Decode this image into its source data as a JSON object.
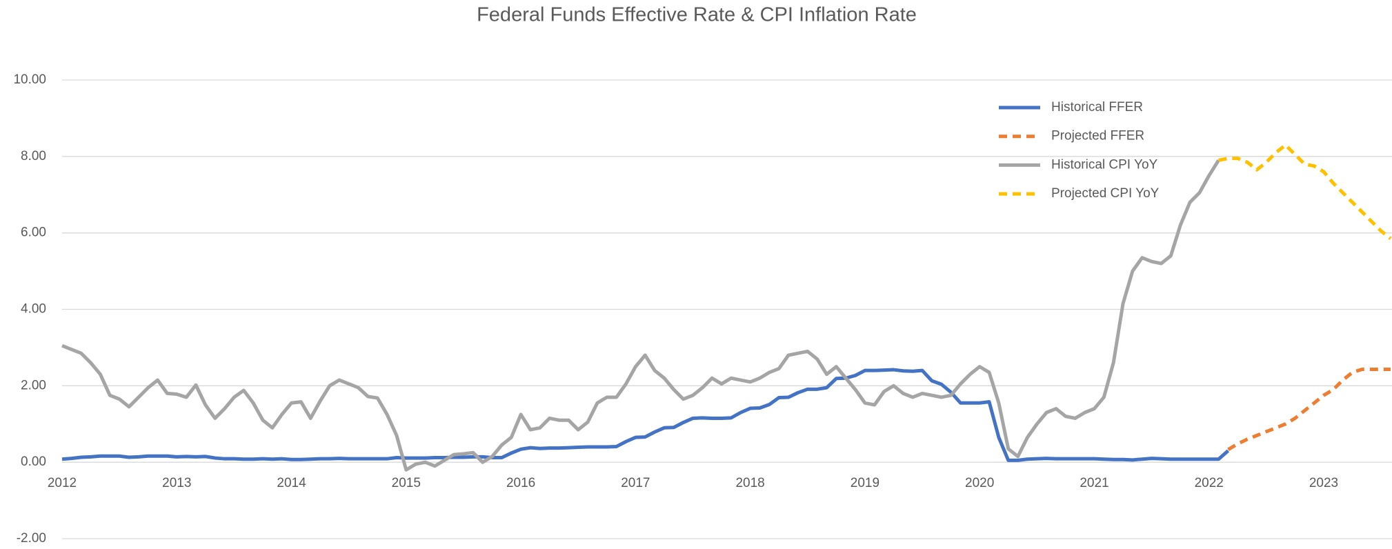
{
  "chart_data": {
    "type": "line",
    "title": "Federal Funds Effective Rate & CPI Inflation Rate",
    "categories": [
      "2012",
      null,
      null,
      null,
      null,
      null,
      null,
      null,
      null,
      null,
      null,
      null,
      "2013",
      null,
      null,
      null,
      null,
      null,
      null,
      null,
      null,
      null,
      null,
      null,
      "2014",
      null,
      null,
      null,
      null,
      null,
      null,
      null,
      null,
      null,
      null,
      null,
      "2015",
      null,
      null,
      null,
      null,
      null,
      null,
      null,
      null,
      null,
      null,
      null,
      "2016",
      null,
      null,
      null,
      null,
      null,
      null,
      null,
      null,
      null,
      null,
      null,
      "2017",
      null,
      null,
      null,
      null,
      null,
      null,
      null,
      null,
      null,
      null,
      null,
      "2018",
      null,
      null,
      null,
      null,
      null,
      null,
      null,
      null,
      null,
      null,
      null,
      "2019",
      null,
      null,
      null,
      null,
      null,
      null,
      null,
      null,
      null,
      null,
      null,
      "2020",
      null,
      null,
      null,
      null,
      null,
      null,
      null,
      null,
      null,
      null,
      null,
      "2021",
      null,
      null,
      null,
      null,
      null,
      null,
      null,
      null,
      null,
      null,
      null,
      "2022",
      null,
      null,
      null,
      null,
      null,
      null,
      null,
      null,
      null,
      null,
      null,
      "2023",
      null,
      null,
      null,
      null,
      null,
      null,
      null
    ],
    "ylim": [
      -2,
      10
    ],
    "yticks": [
      {
        "value": -2,
        "label": "-2.00"
      },
      {
        "value": 0,
        "label": "0.00"
      },
      {
        "value": 2,
        "label": "2.00"
      },
      {
        "value": 4,
        "label": "4.00"
      },
      {
        "value": 6,
        "label": "6.00"
      },
      {
        "value": 8,
        "label": "8.00"
      },
      {
        "value": 10,
        "label": "10.00"
      }
    ],
    "grid": true,
    "legend": "upper right",
    "series": [
      {
        "name": "Historical FFER",
        "color": "#4472c4",
        "dashed": false,
        "values": [
          0.08,
          0.1,
          0.13,
          0.14,
          0.16,
          0.16,
          0.16,
          0.13,
          0.14,
          0.16,
          0.16,
          0.16,
          0.14,
          0.15,
          0.14,
          0.15,
          0.11,
          0.09,
          0.09,
          0.08,
          0.08,
          0.09,
          0.08,
          0.09,
          0.07,
          0.07,
          0.08,
          0.09,
          0.09,
          0.1,
          0.09,
          0.09,
          0.09,
          0.09,
          0.09,
          0.12,
          0.11,
          0.11,
          0.11,
          0.12,
          0.12,
          0.13,
          0.13,
          0.14,
          0.14,
          0.12,
          0.12,
          0.24,
          0.34,
          0.38,
          0.36,
          0.37,
          0.37,
          0.38,
          0.39,
          0.4,
          0.4,
          0.4,
          0.41,
          0.54,
          0.65,
          0.66,
          0.79,
          0.9,
          0.91,
          1.04,
          1.15,
          1.16,
          1.15,
          1.15,
          1.16,
          1.3,
          1.41,
          1.42,
          1.51,
          1.69,
          1.7,
          1.82,
          1.91,
          1.91,
          1.95,
          2.19,
          2.2,
          2.27,
          2.4,
          2.4,
          2.41,
          2.42,
          2.39,
          2.38,
          2.4,
          2.13,
          2.04,
          1.83,
          1.55,
          1.55,
          1.55,
          1.58,
          0.65,
          0.05,
          0.05,
          0.08,
          0.09,
          0.1,
          0.09,
          0.09,
          0.09,
          0.09,
          0.09,
          0.08,
          0.07,
          0.07,
          0.06,
          0.08,
          0.1,
          0.09,
          0.08,
          0.08,
          0.08,
          0.08,
          0.08,
          0.08,
          0.3,
          null,
          null,
          null,
          null,
          null,
          null,
          null,
          null,
          null,
          null,
          null,
          null,
          null,
          null,
          null,
          null,
          null
        ]
      },
      {
        "name": "Projected FFER",
        "color": "#ed7d31",
        "dashed": true,
        "values": [
          null,
          null,
          null,
          null,
          null,
          null,
          null,
          null,
          null,
          null,
          null,
          null,
          null,
          null,
          null,
          null,
          null,
          null,
          null,
          null,
          null,
          null,
          null,
          null,
          null,
          null,
          null,
          null,
          null,
          null,
          null,
          null,
          null,
          null,
          null,
          null,
          null,
          null,
          null,
          null,
          null,
          null,
          null,
          null,
          null,
          null,
          null,
          null,
          null,
          null,
          null,
          null,
          null,
          null,
          null,
          null,
          null,
          null,
          null,
          null,
          null,
          null,
          null,
          null,
          null,
          null,
          null,
          null,
          null,
          null,
          null,
          null,
          null,
          null,
          null,
          null,
          null,
          null,
          null,
          null,
          null,
          null,
          null,
          null,
          null,
          null,
          null,
          null,
          null,
          null,
          null,
          null,
          null,
          null,
          null,
          null,
          null,
          null,
          null,
          null,
          null,
          null,
          null,
          null,
          null,
          null,
          null,
          null,
          null,
          null,
          null,
          null,
          null,
          null,
          null,
          null,
          null,
          null,
          null,
          null,
          null,
          null,
          0.33,
          0.48,
          0.6,
          0.7,
          0.8,
          0.9,
          1.0,
          1.15,
          1.35,
          1.55,
          1.75,
          1.9,
          2.15,
          2.35,
          2.43,
          2.43,
          2.43,
          2.43
        ]
      },
      {
        "name": "Historical CPI YoY",
        "color": "#a5a5a5",
        "dashed": false,
        "values": [
          3.05,
          2.95,
          2.85,
          2.6,
          2.3,
          1.75,
          1.65,
          1.45,
          1.7,
          1.95,
          2.15,
          1.8,
          1.78,
          1.7,
          2.02,
          1.5,
          1.15,
          1.4,
          1.7,
          1.88,
          1.55,
          1.1,
          0.9,
          1.25,
          1.55,
          1.58,
          1.15,
          1.6,
          2.0,
          2.15,
          2.05,
          1.95,
          1.72,
          1.68,
          1.25,
          0.7,
          -0.2,
          -0.05,
          0.0,
          -0.1,
          0.05,
          0.2,
          0.22,
          0.25,
          0.0,
          0.15,
          0.45,
          0.65,
          1.25,
          0.85,
          0.9,
          1.15,
          1.1,
          1.1,
          0.85,
          1.05,
          1.55,
          1.7,
          1.7,
          2.05,
          2.5,
          2.8,
          2.4,
          2.2,
          1.9,
          1.65,
          1.75,
          1.95,
          2.2,
          2.05,
          2.2,
          2.15,
          2.1,
          2.2,
          2.35,
          2.45,
          2.8,
          2.85,
          2.9,
          2.7,
          2.3,
          2.5,
          2.2,
          1.9,
          1.55,
          1.5,
          1.85,
          2.0,
          1.8,
          1.7,
          1.8,
          1.75,
          1.7,
          1.75,
          2.05,
          2.3,
          2.5,
          2.35,
          1.55,
          0.35,
          0.15,
          0.65,
          1.0,
          1.3,
          1.4,
          1.2,
          1.15,
          1.3,
          1.4,
          1.7,
          2.6,
          4.15,
          5.0,
          5.35,
          5.25,
          5.2,
          5.4,
          6.2,
          6.8,
          7.05,
          7.5,
          7.9,
          null,
          null,
          null,
          null,
          null,
          null,
          null,
          null,
          null,
          null,
          null,
          null,
          null,
          null,
          null,
          null,
          null,
          null
        ]
      },
      {
        "name": "Projected CPI YoY",
        "color": "#ffc000",
        "dashed": true,
        "values": [
          null,
          null,
          null,
          null,
          null,
          null,
          null,
          null,
          null,
          null,
          null,
          null,
          null,
          null,
          null,
          null,
          null,
          null,
          null,
          null,
          null,
          null,
          null,
          null,
          null,
          null,
          null,
          null,
          null,
          null,
          null,
          null,
          null,
          null,
          null,
          null,
          null,
          null,
          null,
          null,
          null,
          null,
          null,
          null,
          null,
          null,
          null,
          null,
          null,
          null,
          null,
          null,
          null,
          null,
          null,
          null,
          null,
          null,
          null,
          null,
          null,
          null,
          null,
          null,
          null,
          null,
          null,
          null,
          null,
          null,
          null,
          null,
          null,
          null,
          null,
          null,
          null,
          null,
          null,
          null,
          null,
          null,
          null,
          null,
          null,
          null,
          null,
          null,
          null,
          null,
          null,
          null,
          null,
          null,
          null,
          null,
          null,
          null,
          null,
          null,
          null,
          null,
          null,
          null,
          null,
          null,
          null,
          null,
          null,
          null,
          null,
          null,
          null,
          null,
          null,
          null,
          null,
          null,
          null,
          null,
          null,
          7.9,
          7.95,
          7.95,
          7.85,
          7.65,
          7.85,
          8.1,
          8.3,
          8.05,
          7.8,
          7.75,
          7.6,
          7.3,
          7.05,
          6.8,
          6.55,
          6.3,
          6.05,
          5.85
        ]
      }
    ]
  }
}
